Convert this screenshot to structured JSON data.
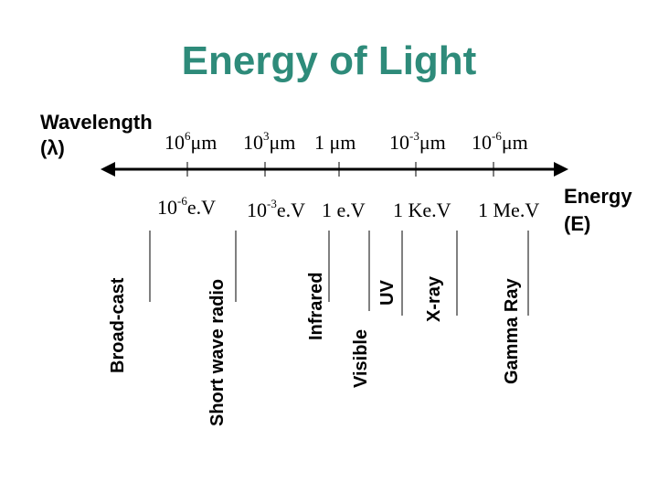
{
  "title": "Energy of Light",
  "wavelength_axis": {
    "label_line1": "Wavelength",
    "label_line2": "(λ)",
    "ticks": [
      {
        "base": "10",
        "exp": "6",
        "unit": "μm"
      },
      {
        "base": "10",
        "exp": "3",
        "unit": "μm"
      },
      {
        "base": "1",
        "exp": "",
        "unit": "μm"
      },
      {
        "base": "10",
        "exp": "-3",
        "unit": "μm"
      },
      {
        "base": "10",
        "exp": "-6",
        "unit": "μm"
      }
    ]
  },
  "energy_axis": {
    "label_line1": "Energy",
    "label_line2": "(E)",
    "ticks": [
      {
        "base": "10",
        "exp": "-6",
        "unit": "e.V"
      },
      {
        "base": "10",
        "exp": "-3",
        "unit": "e.V"
      },
      {
        "base": "1",
        "exp": "",
        "unit": "e.V"
      },
      {
        "base": "1",
        "exp": "",
        "unit": "Ke.V"
      },
      {
        "base": "1",
        "exp": "",
        "unit": "Me.V"
      }
    ]
  },
  "regions": [
    "Broad-cast",
    "Short wave radio",
    "Infrared",
    "Visible",
    "UV",
    "X-ray",
    "Gamma Ray"
  ],
  "colors": {
    "title": "#2e8b7a",
    "text": "#000000"
  }
}
